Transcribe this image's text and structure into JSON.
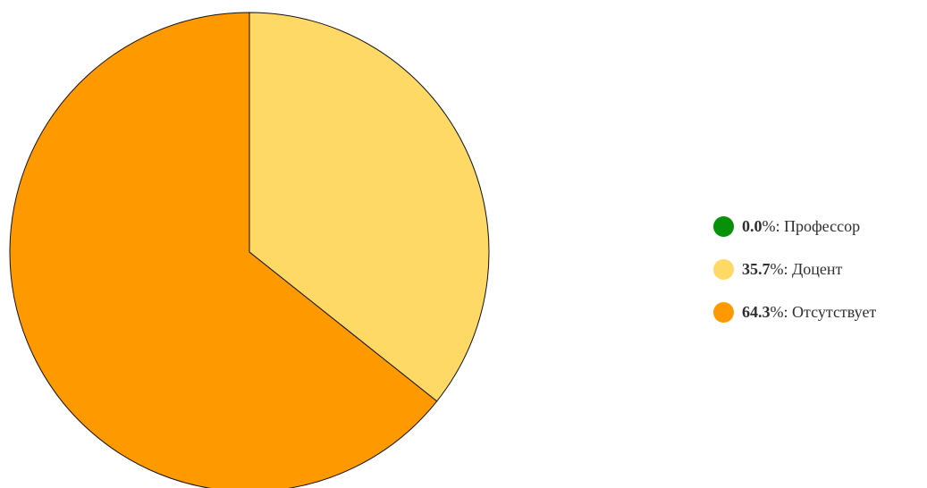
{
  "chart_data": {
    "type": "pie",
    "start_angle_deg": 0,
    "direction": "clockwise",
    "legend_position": "right",
    "percent_suffix": "%",
    "slices": [
      {
        "label": "Профессор",
        "value": 0.0,
        "value_text": "0.0",
        "color": "#079108"
      },
      {
        "label": "Доцент",
        "value": 35.7,
        "value_text": "35.7",
        "color": "#FFD966"
      },
      {
        "label": "Отсутствует",
        "value": 64.3,
        "value_text": "64.3",
        "color": "#FF9900"
      }
    ]
  }
}
